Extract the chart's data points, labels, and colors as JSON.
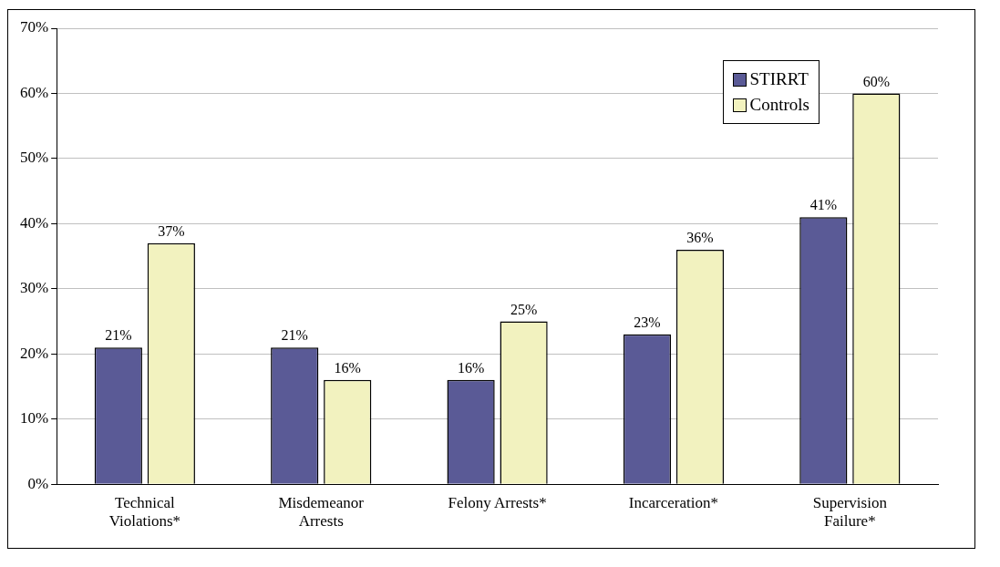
{
  "chart_data": {
    "type": "bar",
    "categories": [
      "Technical Violations*",
      "Misdemeanor Arrests",
      "Felony Arrests*",
      "Incarceration*",
      "Supervision Failure*"
    ],
    "series": [
      {
        "name": "STIRRT",
        "color": "#5a5a96",
        "values": [
          21,
          21,
          16,
          23,
          41
        ],
        "value_labels": [
          "21%",
          "21%",
          "16%",
          "23%",
          "41%"
        ]
      },
      {
        "name": "Controls",
        "color": "#f2f2bf",
        "values": [
          37,
          16,
          25,
          36,
          60
        ],
        "value_labels": [
          "37%",
          "16%",
          "25%",
          "36%",
          "60%"
        ]
      }
    ],
    "ylim": [
      0,
      70
    ],
    "yticks": [
      {
        "value": 0,
        "label": "0%"
      },
      {
        "value": 10,
        "label": "10%"
      },
      {
        "value": 20,
        "label": "20%"
      },
      {
        "value": 30,
        "label": "30%"
      },
      {
        "value": 40,
        "label": "40%"
      },
      {
        "value": 50,
        "label": "50%"
      },
      {
        "value": 60,
        "label": "60%"
      },
      {
        "value": 70,
        "label": "70%"
      }
    ],
    "grid": "y",
    "legend": "top right"
  }
}
